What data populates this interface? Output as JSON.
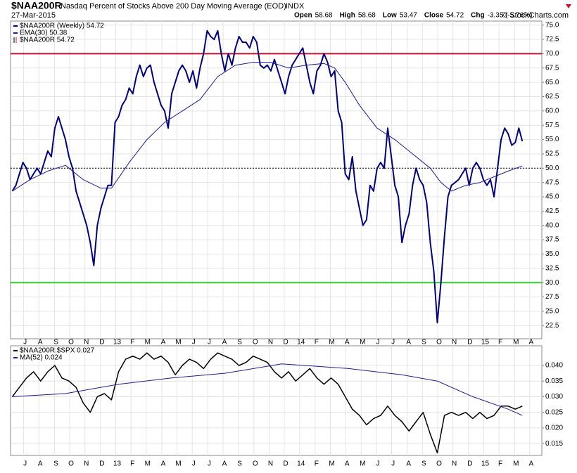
{
  "header": {
    "symbol": "$NAA200R",
    "name": "Nasdaq Percent of Stocks Above 200 Day Moving Average (EOD)",
    "exchange": "INDX",
    "date": "27-Mar-2015",
    "ohlc": [
      {
        "label": "Open",
        "value": 58.68
      },
      {
        "label": "High",
        "value": 58.68
      },
      {
        "label": "Low",
        "value": 53.47
      },
      {
        "label": "Close",
        "value": 54.72
      }
    ],
    "change_label": "Chg",
    "change": "-3.35 (-5.76%)",
    "credit": "© StockCharts.com"
  },
  "chart_data": [
    {
      "type": "line",
      "xlim": [
        -0.5,
        149.5
      ],
      "ylim": [
        20.2,
        75.7
      ],
      "xticks": [
        {
          "value": 3.2,
          "label": "J"
        },
        {
          "value": 7.5,
          "label": "A"
        },
        {
          "value": 11.9,
          "label": "S"
        },
        {
          "value": 16.2,
          "label": "O"
        },
        {
          "value": 20.5,
          "label": "N"
        },
        {
          "value": 24.9,
          "label": "D"
        },
        {
          "value": 29.2,
          "label": "13"
        },
        {
          "value": 33.5,
          "label": "F"
        },
        {
          "value": 37.8,
          "label": "M"
        },
        {
          "value": 42.2,
          "label": "A"
        },
        {
          "value": 46.5,
          "label": "M"
        },
        {
          "value": 50.8,
          "label": "J"
        },
        {
          "value": 55.2,
          "label": "J"
        },
        {
          "value": 59.5,
          "label": "A"
        },
        {
          "value": 63.8,
          "label": "S"
        },
        {
          "value": 68.2,
          "label": "O"
        },
        {
          "value": 72.5,
          "label": "N"
        },
        {
          "value": 76.8,
          "label": "D"
        },
        {
          "value": 81.1,
          "label": "14"
        },
        {
          "value": 85.5,
          "label": "F"
        },
        {
          "value": 89.8,
          "label": "M"
        },
        {
          "value": 94.1,
          "label": "A"
        },
        {
          "value": 98.5,
          "label": "M"
        },
        {
          "value": 102.8,
          "label": "J"
        },
        {
          "value": 107.1,
          "label": "J"
        },
        {
          "value": 111.5,
          "label": "A"
        },
        {
          "value": 115.8,
          "label": "S"
        },
        {
          "value": 120.1,
          "label": "O"
        },
        {
          "value": 124.4,
          "label": "N"
        },
        {
          "value": 128.8,
          "label": "D"
        },
        {
          "value": 133.1,
          "label": "15"
        },
        {
          "value": 137.4,
          "label": "F"
        },
        {
          "value": 141.8,
          "label": "M"
        },
        {
          "value": 146.1,
          "label": "A"
        }
      ],
      "yticks": [
        {
          "value": 22.5,
          "label": "22.5"
        },
        {
          "value": 25,
          "label": "25.0"
        },
        {
          "value": 27.5,
          "label": "27.5"
        },
        {
          "value": 30,
          "label": "30.0"
        },
        {
          "value": 32.5,
          "label": "32.5"
        },
        {
          "value": 35,
          "label": "35.0"
        },
        {
          "value": 37.5,
          "label": "37.5"
        },
        {
          "value": 40,
          "label": "40.0"
        },
        {
          "value": 42.5,
          "label": "42.5"
        },
        {
          "value": 45,
          "label": "45.0"
        },
        {
          "value": 47.5,
          "label": "47.5"
        },
        {
          "value": 50,
          "label": "50.0"
        },
        {
          "value": 52.5,
          "label": "52.5"
        },
        {
          "value": 55,
          "label": "55.0"
        },
        {
          "value": 57.5,
          "label": "57.5"
        },
        {
          "value": 60,
          "label": "60.0"
        },
        {
          "value": 62.5,
          "label": "62.5"
        },
        {
          "value": 65,
          "label": "65.0"
        },
        {
          "value": 67.5,
          "label": "67.5"
        },
        {
          "value": 70,
          "label": "70.0"
        },
        {
          "value": 72.5,
          "label": "72.5"
        },
        {
          "value": 75,
          "label": "75.0"
        }
      ],
      "reference_lines": [
        {
          "value": 70,
          "color": "#c8102e",
          "dash": false
        },
        {
          "value": 30,
          "color": "#22dd22",
          "dash": false
        },
        {
          "value": 50,
          "color": "#000000",
          "dash": true
        }
      ],
      "series": [
        {
          "name": "$NAA200R (Weekly) 54.72",
          "color": "#000080",
          "width": 2,
          "x": [
            0,
            1,
            2,
            3,
            4,
            5,
            6,
            7,
            8,
            9,
            10,
            11,
            12,
            13,
            14,
            15,
            16,
            17,
            18,
            19,
            20,
            21,
            22,
            23,
            24,
            25,
            26,
            27,
            28,
            29,
            30,
            31,
            32,
            33,
            34,
            35,
            36,
            37,
            38,
            39,
            40,
            41,
            42,
            43,
            44,
            45,
            46,
            47,
            48,
            49,
            50,
            51,
            52,
            53,
            54,
            55,
            56,
            57,
            58,
            59,
            60,
            61,
            62,
            63,
            64,
            65,
            66,
            67,
            68,
            69,
            70,
            71,
            72,
            73,
            74,
            75,
            76,
            77,
            78,
            79,
            80,
            81,
            82,
            83,
            84,
            85,
            86,
            87,
            88,
            89,
            90,
            91,
            92,
            93,
            94,
            95,
            96,
            97,
            98,
            99,
            100,
            101,
            102,
            103,
            104,
            105,
            106,
            107,
            108,
            109,
            110,
            111,
            112,
            113,
            114,
            115,
            116,
            117,
            118,
            119,
            120,
            121,
            122,
            123,
            124,
            125,
            126,
            127,
            128,
            129,
            130,
            131,
            132,
            133,
            134,
            135,
            136,
            137,
            138,
            139,
            140,
            141,
            142,
            143,
            144
          ],
          "values": [
            46,
            47,
            49,
            51,
            50,
            48,
            49,
            50,
            49,
            51,
            53,
            52,
            57,
            59,
            57,
            55,
            52,
            50,
            46,
            44,
            42,
            40,
            37,
            33,
            40,
            43,
            45,
            47,
            47,
            58,
            59,
            61,
            62,
            64,
            63,
            66,
            68,
            66,
            67.5,
            68,
            65,
            63,
            61,
            60,
            57,
            63,
            65,
            67,
            68,
            67,
            65,
            67,
            64,
            67.5,
            70,
            74,
            73,
            72.5,
            74,
            70,
            67,
            70,
            68,
            71,
            73,
            72,
            72,
            71,
            73,
            72,
            68,
            67.5,
            68,
            67,
            69,
            67,
            65,
            63,
            66,
            68,
            69,
            70,
            71,
            68,
            65,
            63,
            67,
            68,
            70,
            68.5,
            66,
            67,
            60,
            58,
            49,
            48,
            52,
            46,
            43,
            40,
            41,
            47,
            46,
            50,
            51,
            50,
            57,
            52,
            47,
            45,
            37,
            40,
            42,
            47,
            50,
            48,
            47,
            44,
            37,
            32,
            23,
            30,
            38,
            45,
            47,
            47.5,
            48,
            49,
            50,
            47,
            50,
            51,
            50,
            48,
            47,
            48,
            45,
            50,
            55,
            57,
            56,
            54,
            54.5,
            57,
            54.72
          ]
        },
        {
          "name": "EMA(30) 50.38",
          "color": "#1c1c9c",
          "width": 1,
          "x": [
            0,
            5,
            10,
            15,
            20,
            25,
            28,
            33,
            38,
            43,
            48,
            53,
            58,
            63,
            68,
            73,
            78,
            83,
            88,
            91,
            94,
            98,
            103,
            108,
            113,
            118,
            121,
            124,
            128,
            132,
            136,
            140,
            144
          ],
          "values": [
            46,
            48,
            49.5,
            50.5,
            48,
            46.5,
            46.5,
            51,
            55,
            58,
            60,
            62,
            66,
            68,
            68.5,
            68.5,
            67.5,
            68,
            68.3,
            67.5,
            65,
            61,
            57,
            55,
            52.5,
            50,
            47.5,
            46,
            47,
            47.5,
            48.5,
            49.5,
            50.38
          ]
        }
      ],
      "legend_extra": "$NAA200R 54.72"
    },
    {
      "type": "line",
      "xlim": [
        -0.5,
        149.5
      ],
      "ylim": [
        0.0112,
        0.0463
      ],
      "xticks": [
        {
          "value": 3.2,
          "label": "J"
        },
        {
          "value": 7.5,
          "label": "A"
        },
        {
          "value": 11.9,
          "label": "S"
        },
        {
          "value": 16.2,
          "label": "O"
        },
        {
          "value": 20.5,
          "label": "N"
        },
        {
          "value": 24.9,
          "label": "D"
        },
        {
          "value": 29.2,
          "label": "13"
        },
        {
          "value": 33.5,
          "label": "F"
        },
        {
          "value": 37.8,
          "label": "M"
        },
        {
          "value": 42.2,
          "label": "A"
        },
        {
          "value": 46.5,
          "label": "M"
        },
        {
          "value": 50.8,
          "label": "J"
        },
        {
          "value": 55.2,
          "label": "J"
        },
        {
          "value": 59.5,
          "label": "A"
        },
        {
          "value": 63.8,
          "label": "S"
        },
        {
          "value": 68.2,
          "label": "O"
        },
        {
          "value": 72.5,
          "label": "N"
        },
        {
          "value": 76.8,
          "label": "D"
        },
        {
          "value": 81.1,
          "label": "14"
        },
        {
          "value": 85.5,
          "label": "F"
        },
        {
          "value": 89.8,
          "label": "M"
        },
        {
          "value": 94.1,
          "label": "A"
        },
        {
          "value": 98.5,
          "label": "M"
        },
        {
          "value": 102.8,
          "label": "J"
        },
        {
          "value": 107.1,
          "label": "J"
        },
        {
          "value": 111.5,
          "label": "A"
        },
        {
          "value": 115.8,
          "label": "S"
        },
        {
          "value": 120.1,
          "label": "O"
        },
        {
          "value": 124.4,
          "label": "N"
        },
        {
          "value": 128.8,
          "label": "D"
        },
        {
          "value": 133.1,
          "label": "15"
        },
        {
          "value": 137.4,
          "label": "F"
        },
        {
          "value": 141.8,
          "label": "M"
        },
        {
          "value": 146.1,
          "label": "A"
        }
      ],
      "yticks": [
        {
          "value": 0.015,
          "label": "0.015"
        },
        {
          "value": 0.02,
          "label": "0.020"
        },
        {
          "value": 0.025,
          "label": "0.025"
        },
        {
          "value": 0.03,
          "label": "0.030"
        },
        {
          "value": 0.035,
          "label": "0.035"
        },
        {
          "value": 0.04,
          "label": "0.040"
        }
      ],
      "series": [
        {
          "name": "$NAA200R:$SPX 0.027",
          "color": "#000000",
          "width": 1.5,
          "x": [
            0,
            2,
            4,
            6,
            8,
            10,
            12,
            14,
            16,
            18,
            20,
            22,
            24,
            26,
            28,
            30,
            32,
            34,
            36,
            38,
            40,
            42,
            44,
            46,
            48,
            50,
            52,
            54,
            56,
            58,
            60,
            62,
            64,
            66,
            68,
            70,
            72,
            74,
            76,
            78,
            80,
            82,
            84,
            86,
            88,
            90,
            92,
            94,
            96,
            98,
            100,
            102,
            104,
            106,
            108,
            110,
            112,
            114,
            116,
            118,
            120,
            122,
            124,
            126,
            128,
            130,
            132,
            134,
            136,
            138,
            140,
            142,
            144
          ],
          "values": [
            0.03,
            0.033,
            0.036,
            0.038,
            0.035,
            0.038,
            0.04,
            0.036,
            0.035,
            0.033,
            0.028,
            0.025,
            0.03,
            0.031,
            0.029,
            0.038,
            0.042,
            0.043,
            0.042,
            0.044,
            0.042,
            0.043,
            0.041,
            0.037,
            0.04,
            0.042,
            0.041,
            0.039,
            0.042,
            0.044,
            0.043,
            0.042,
            0.04,
            0.041,
            0.043,
            0.042,
            0.041,
            0.038,
            0.036,
            0.038,
            0.035,
            0.037,
            0.039,
            0.036,
            0.034,
            0.036,
            0.034,
            0.03,
            0.026,
            0.024,
            0.021,
            0.023,
            0.024,
            0.027,
            0.024,
            0.022,
            0.019,
            0.022,
            0.025,
            0.018,
            0.012,
            0.024,
            0.025,
            0.024,
            0.025,
            0.023,
            0.025,
            0.023,
            0.024,
            0.027,
            0.027,
            0.026,
            0.027
          ]
        },
        {
          "name": "MA(52) 0.024",
          "color": "#1c1c9c",
          "width": 1,
          "x": [
            0,
            15,
            30,
            45,
            60,
            76,
            95,
            110,
            120,
            130,
            140,
            144
          ],
          "values": [
            0.03,
            0.031,
            0.034,
            0.036,
            0.0375,
            0.0405,
            0.039,
            0.037,
            0.035,
            0.03,
            0.026,
            0.024
          ]
        }
      ]
    }
  ]
}
